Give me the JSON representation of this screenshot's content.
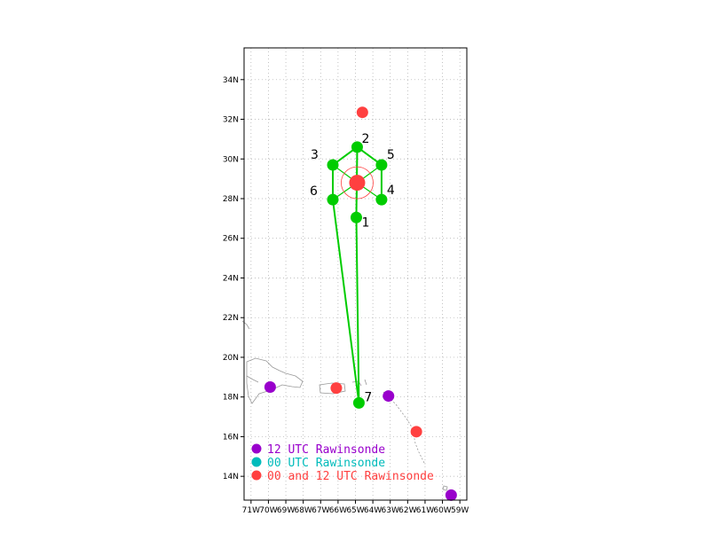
{
  "map": {
    "lat_range": [
      12.8,
      35.6
    ],
    "lon_range": [
      -71.4,
      -58.6
    ],
    "grid": true,
    "lat_ticks": [
      "14N",
      "16N",
      "18N",
      "20N",
      "22N",
      "24N",
      "26N",
      "28N",
      "30N",
      "32N",
      "34N"
    ],
    "lon_ticks": [
      "71W",
      "70W",
      "69W",
      "68W",
      "67W",
      "66W",
      "65W",
      "64W",
      "63W",
      "62W",
      "61W",
      "60W",
      "59W"
    ]
  },
  "center": {
    "lat": 28.8,
    "lon": -64.9
  },
  "drop_points": [
    {
      "label": "1",
      "lat": 27.05,
      "lon": -64.95
    },
    {
      "label": "2",
      "lat": 30.6,
      "lon": -64.9
    },
    {
      "label": "3",
      "lat": 29.7,
      "lon": -66.3
    },
    {
      "label": "4",
      "lat": 27.95,
      "lon": -63.5
    },
    {
      "label": "5",
      "lat": 29.7,
      "lon": -63.5
    },
    {
      "label": "6",
      "lat": 27.95,
      "lon": -66.3
    },
    {
      "label": "7",
      "lat": 17.7,
      "lon": -64.8
    }
  ],
  "flight_track": [
    "7",
    "1",
    "2",
    "3",
    "6",
    "7"
  ],
  "track_extra": [
    [
      "2",
      "5"
    ],
    [
      "5",
      "4"
    ]
  ],
  "spokes": [
    "1",
    "2",
    "3",
    "4",
    "5",
    "6"
  ],
  "rawinsondes": [
    {
      "type": "00 and 12 UTC",
      "lat": 32.35,
      "lon": -64.6
    },
    {
      "type": "00 and 12 UTC",
      "lat": 18.45,
      "lon": -66.1
    },
    {
      "type": "00 and 12 UTC",
      "lat": 16.25,
      "lon": -61.5
    },
    {
      "type": "12 UTC",
      "lat": 18.5,
      "lon": -69.9
    },
    {
      "type": "12 UTC",
      "lat": 18.05,
      "lon": -63.1
    },
    {
      "type": "12 UTC",
      "lat": 13.05,
      "lon": -59.5
    }
  ],
  "legend": [
    {
      "label": "12 UTC Rawinsonde",
      "color": "#9900cc"
    },
    {
      "label": "00 UTC Rawinsonde",
      "color": "#00bbbb"
    },
    {
      "label": "00 and 12 UTC Rawinsonde",
      "color": "#ff4040"
    }
  ],
  "colors": {
    "track": "#00cc00",
    "center": "#ff4040",
    "grid": "#aaaaaa",
    "coast": "#999999"
  }
}
